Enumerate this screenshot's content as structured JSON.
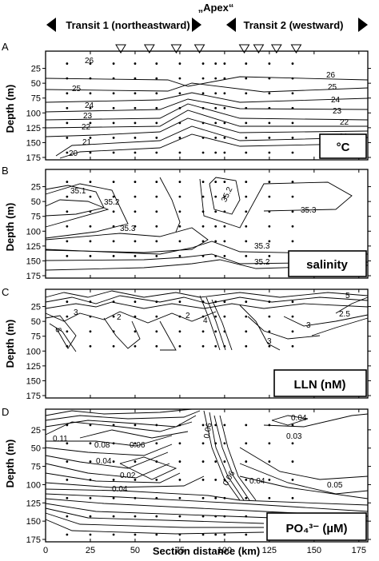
{
  "header": {
    "apex_label": "„Apex“",
    "transit1_label": "Transit 1 (northeastward)",
    "transit2_label": "Transit 2 (westward)"
  },
  "chart_data": [
    {
      "type": "contour",
      "panel_letter": "A",
      "variable_label": "°C",
      "ylabel": "Depth (m)",
      "xlim": [
        0,
        180
      ],
      "ylim": [
        175,
        0
      ],
      "y_ticks": [
        25,
        50,
        75,
        100,
        125,
        150,
        175
      ],
      "x_ticks": [
        0,
        25,
        50,
        75,
        100,
        125,
        150,
        175
      ],
      "contour_labels": [
        "26",
        "26",
        "25",
        "25",
        "24",
        "24",
        "23",
        "23",
        "22",
        "22",
        "21",
        "21",
        "20"
      ]
    },
    {
      "type": "contour",
      "panel_letter": "B",
      "variable_label": "salinity",
      "ylabel": "Depth (m)",
      "xlim": [
        0,
        180
      ],
      "ylim": [
        175,
        0
      ],
      "y_ticks": [
        25,
        50,
        75,
        100,
        125,
        150,
        175
      ],
      "x_ticks": [
        0,
        25,
        50,
        75,
        100,
        125,
        150,
        175
      ],
      "contour_labels": [
        "35.1",
        "35.2",
        "35.2",
        "35.3",
        "35.3",
        "35.3",
        "35.2"
      ]
    },
    {
      "type": "contour",
      "panel_letter": "C",
      "variable_label": "LLN (nM)",
      "ylabel": "Depth (m)",
      "xlim": [
        0,
        180
      ],
      "ylim": [
        175,
        0
      ],
      "y_ticks": [
        25,
        50,
        75,
        100,
        125,
        150,
        175
      ],
      "x_ticks": [
        0,
        25,
        50,
        75,
        100,
        125,
        150,
        175
      ],
      "contour_labels": [
        "5",
        "3",
        "2",
        "2",
        "4",
        "3",
        "3",
        "2.5",
        "5"
      ]
    },
    {
      "type": "contour",
      "panel_letter": "D",
      "variable_label": "PO₄³⁻ (µM)",
      "ylabel": "Depth (m)",
      "xlabel": "Section distance (km)",
      "xlim": [
        0,
        180
      ],
      "ylim": [
        175,
        0
      ],
      "y_ticks": [
        25,
        50,
        75,
        100,
        125,
        150,
        175
      ],
      "x_ticks": [
        0,
        25,
        50,
        75,
        100,
        125,
        150,
        175
      ],
      "x_tick_labels": [
        "0",
        "25",
        "50",
        "75",
        "100",
        "125",
        "150",
        "175"
      ],
      "contour_labels": [
        "0.11",
        "0.08",
        "0.06",
        "0.04",
        "0.02",
        "0.04",
        "0.06",
        "0.04",
        "0.04",
        "0.03",
        "0.05",
        "0.06"
      ]
    }
  ],
  "stations_km": [
    12,
    25,
    38,
    50,
    62,
    75,
    88,
    95,
    100,
    112,
    125,
    138
  ],
  "station_triangles_km": [
    42,
    58,
    73,
    86,
    111,
    119,
    129,
    140
  ]
}
